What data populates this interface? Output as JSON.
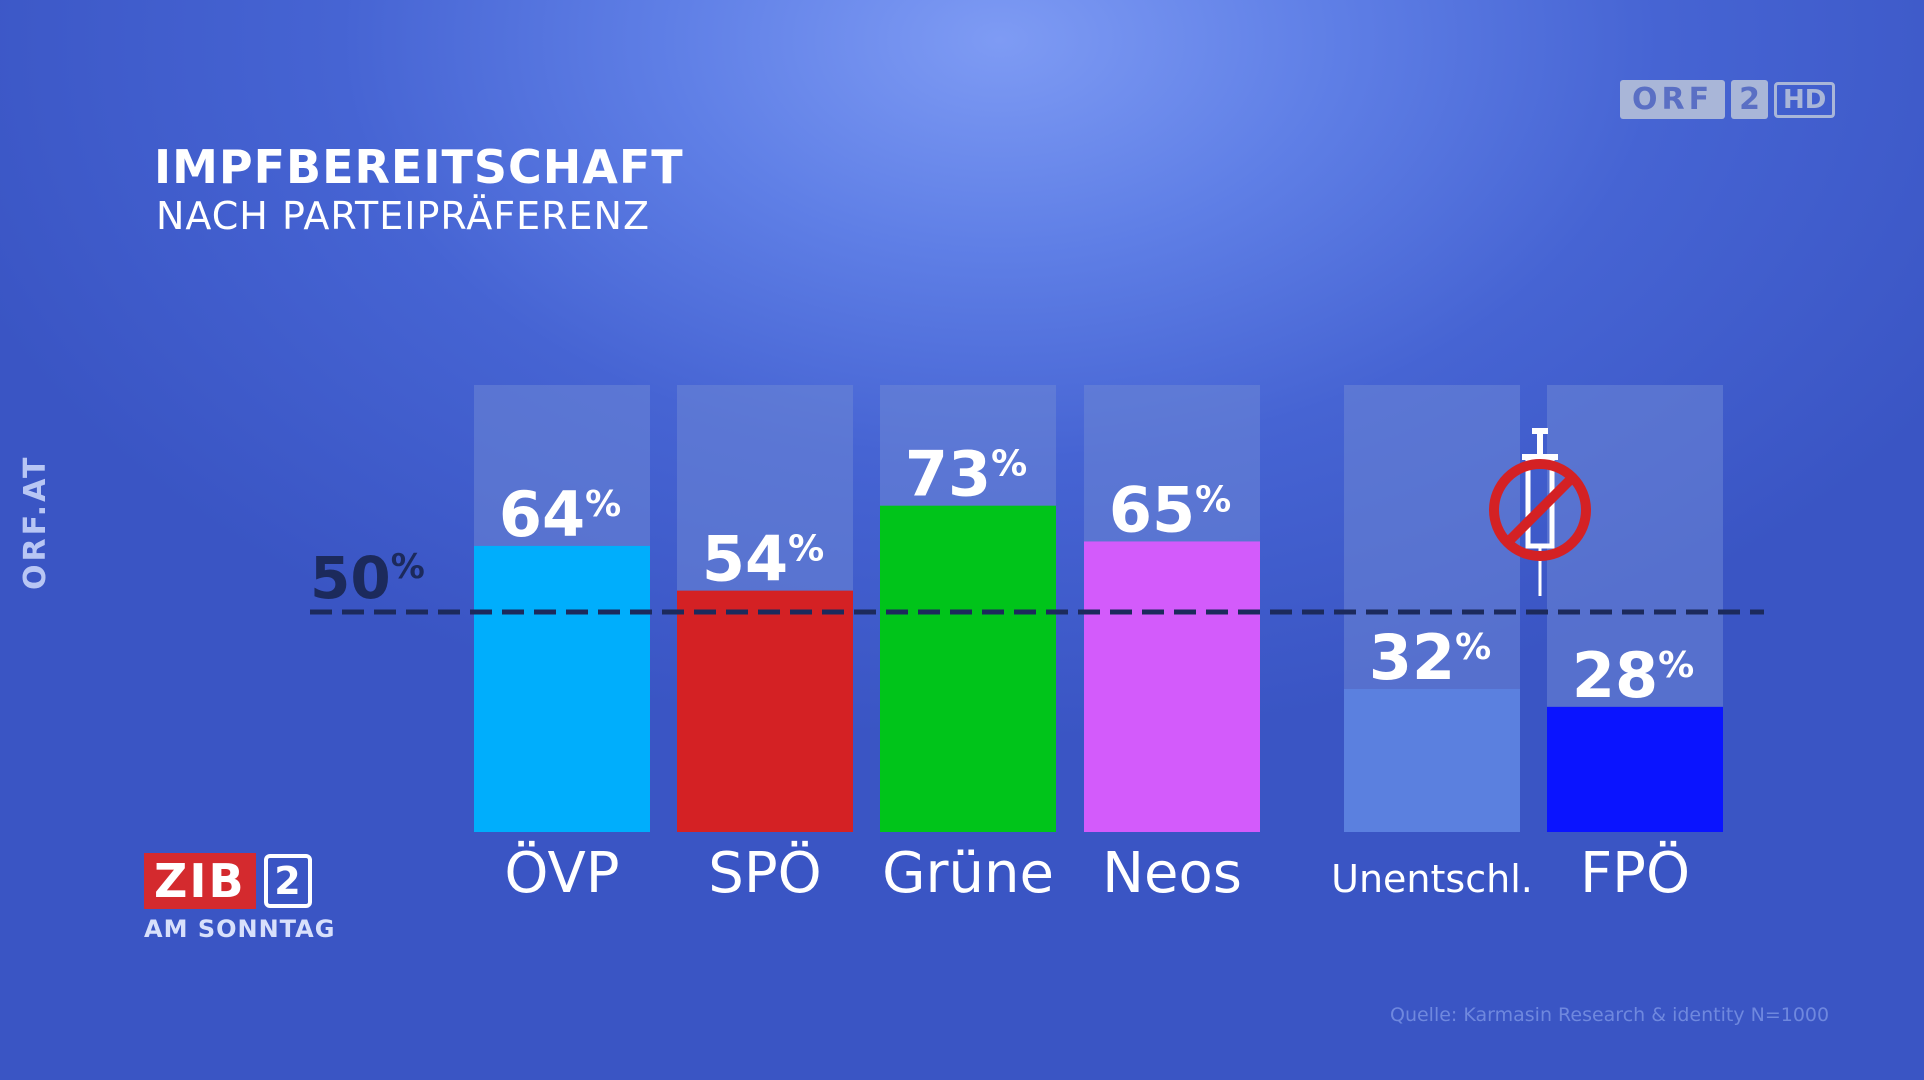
{
  "header": {
    "title": "IMPFBEREITSCHAFT",
    "subtitle": "NACH PARTEIPRÄFERENZ"
  },
  "side_label": "ORF.AT",
  "channel_logo": {
    "name": "ORF",
    "number": "2",
    "hd": "HD"
  },
  "show_logo": {
    "name": "ZIB",
    "number": "2",
    "subtitle": "AM SONNTAG"
  },
  "source": "Quelle: Karmasin Research & identity N=1000",
  "icons": {
    "no_vaccine": "syringe-prohibited-icon"
  },
  "chart_data": {
    "type": "bar",
    "title": "IMPFBEREITSCHAFT",
    "subtitle": "NACH PARTEIPRÄFERENZ",
    "unit": "%",
    "ylim": [
      0,
      100
    ],
    "reference_line": {
      "value": 50,
      "label": "50",
      "unit": "%"
    },
    "categories": [
      "ÖVP",
      "SPÖ",
      "Grüne",
      "Neos",
      "Unentschl.",
      "FPÖ"
    ],
    "values": [
      64,
      54,
      73,
      65,
      32,
      28
    ],
    "value_labels": [
      "64",
      "54",
      "73",
      "65",
      "32",
      "28"
    ],
    "colors": [
      "#00aefc",
      "#d42124",
      "#00c41a",
      "#d35bfb",
      "#5b80df",
      "#0a14ff"
    ],
    "track_color": "#6e86d6",
    "grid": false,
    "legend": "none"
  }
}
